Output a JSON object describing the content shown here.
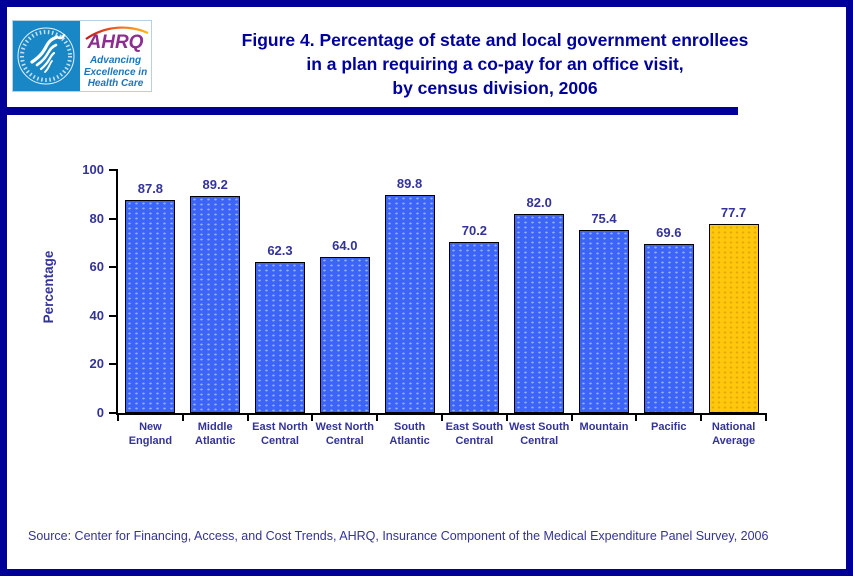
{
  "header": {
    "title_lines": [
      "Figure 4. Percentage of state and local government enrollees",
      "in a plan requiring a co-pay for an office visit,",
      "by census division, 2006"
    ],
    "logo": {
      "hhs_seal_icon": "hhs-eagle-seal-icon",
      "ahrq_text": "AHRQ",
      "tagline_lines": [
        "Advancing",
        "Excellence in",
        "Health Care"
      ]
    }
  },
  "chart_data": {
    "type": "bar",
    "title": "Figure 4. Percentage of state and local government enrollees in a plan requiring a co-pay for an office visit, by census division, 2006",
    "categories": [
      "New England",
      "Middle Atlantic",
      "East North Central",
      "West North Central",
      "South Atlantic",
      "East South Central",
      "West South Central",
      "Mountain",
      "Pacific",
      "National Average"
    ],
    "values": [
      87.8,
      89.2,
      62.3,
      64.0,
      89.8,
      70.2,
      82.0,
      75.4,
      69.6,
      77.7
    ],
    "value_labels": [
      "87.8",
      "89.2",
      "62.3",
      "64.0",
      "89.8",
      "70.2",
      "82.0",
      "75.4",
      "69.6",
      "77.7"
    ],
    "xlabel": "",
    "ylabel": "Percentage",
    "ylim": [
      0,
      100
    ],
    "ytick_step": 20,
    "yticks": [
      0,
      20,
      40,
      60,
      80,
      100
    ],
    "grid": false,
    "legend": false,
    "bar_color": "#3C64F6",
    "highlight_color": "#FFC80D",
    "highlight_category": "National Average",
    "text_color": "#33339A"
  },
  "footer": {
    "source": "Source: Center for Financing, Access, and Cost Trends, AHRQ, Insurance Component of the Medical Expenditure Panel Survey, 2006"
  }
}
